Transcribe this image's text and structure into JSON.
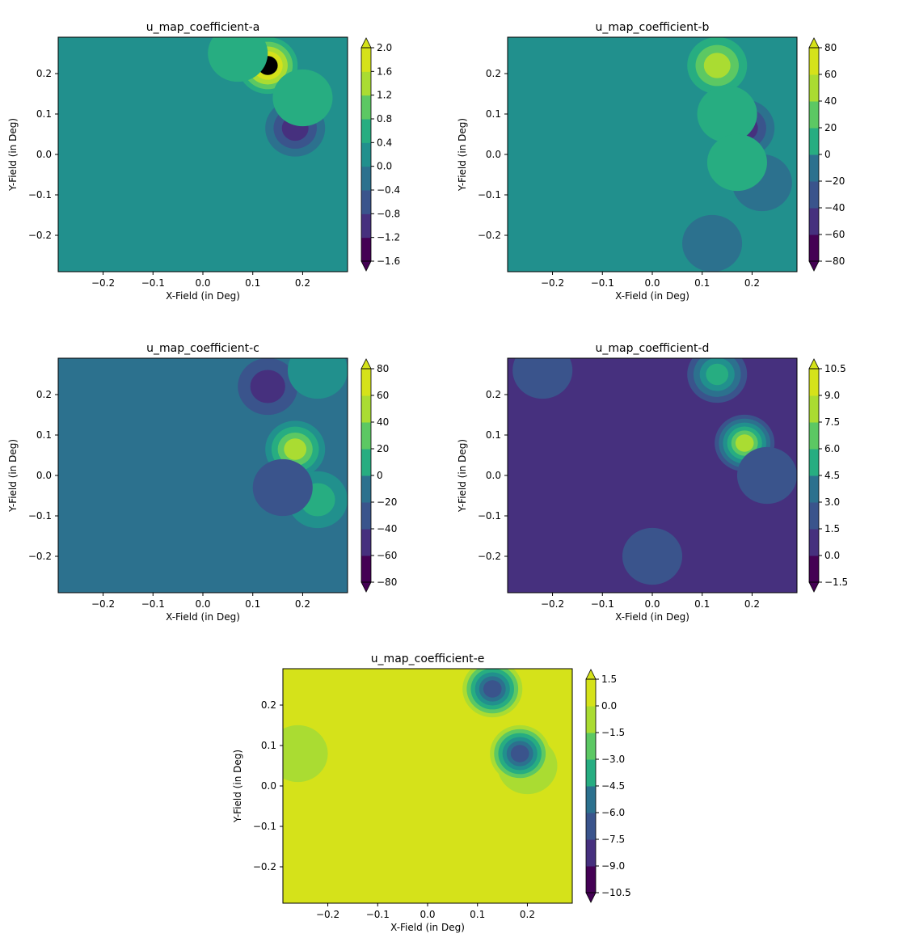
{
  "chart_data": [
    {
      "type": "heatmap",
      "title": "u_map_coefficient-a",
      "xlabel": "X-Field (in Deg)",
      "ylabel": "Y-Field (in Deg)",
      "xlim": [
        -0.29,
        0.29
      ],
      "ylim": [
        -0.29,
        0.29
      ],
      "xticks": [
        -0.2,
        -0.1,
        0.0,
        0.1,
        0.2
      ],
      "xtick_labels": [
        "−0.2",
        "−0.1",
        "0.0",
        "0.1",
        "0.2"
      ],
      "yticks": [
        -0.2,
        -0.1,
        0.0,
        0.1,
        0.2
      ],
      "ytick_labels": [
        "−0.2",
        "−0.1",
        "0.0",
        "0.1",
        "0.2"
      ],
      "colorbar_ticks": [
        "−1.6",
        "−1.2",
        "−0.8",
        "−0.4",
        "0.0",
        "0.4",
        "0.8",
        "1.2",
        "1.6",
        "2.0"
      ],
      "colorbar_extend": "both",
      "base_level": 4,
      "blobs": [
        {
          "x": 0.13,
          "y": 0.22,
          "levels": [
            5,
            6,
            7,
            8,
            9
          ]
        },
        {
          "x": 0.185,
          "y": 0.065,
          "levels": [
            3,
            2,
            1
          ]
        },
        {
          "x": 0.07,
          "y": 0.25,
          "levels": [
            5
          ]
        },
        {
          "x": 0.2,
          "y": 0.14,
          "levels": [
            5
          ]
        }
      ]
    },
    {
      "type": "heatmap",
      "title": "u_map_coefficient-b",
      "xlabel": "X-Field (in Deg)",
      "ylabel": "Y-Field (in Deg)",
      "xlim": [
        -0.29,
        0.29
      ],
      "ylim": [
        -0.29,
        0.29
      ],
      "xticks": [
        -0.2,
        -0.1,
        0.0,
        0.1,
        0.2
      ],
      "xtick_labels": [
        "−0.2",
        "−0.1",
        "0.0",
        "0.1",
        "0.2"
      ],
      "yticks": [
        -0.2,
        -0.1,
        0.0,
        0.1,
        0.2
      ],
      "ytick_labels": [
        "−0.2",
        "−0.1",
        "0.0",
        "0.1",
        "0.2"
      ],
      "colorbar_ticks": [
        "−80",
        "−60",
        "−40",
        "−20",
        "0",
        "20",
        "40",
        "60",
        "80"
      ],
      "colorbar_extend": "both",
      "base_level": 4,
      "blobs": [
        {
          "x": 0.13,
          "y": 0.22,
          "levels": [
            5,
            6,
            7
          ]
        },
        {
          "x": 0.185,
          "y": 0.065,
          "levels": [
            3,
            2,
            1
          ]
        },
        {
          "x": 0.22,
          "y": -0.07,
          "levels": [
            3
          ]
        },
        {
          "x": 0.12,
          "y": -0.22,
          "levels": [
            3
          ]
        },
        {
          "x": 0.15,
          "y": 0.1,
          "levels": [
            5
          ]
        },
        {
          "x": 0.17,
          "y": -0.02,
          "levels": [
            5
          ]
        }
      ]
    },
    {
      "type": "heatmap",
      "title": "u_map_coefficient-c",
      "xlabel": "X-Field (in Deg)",
      "ylabel": "Y-Field (in Deg)",
      "xlim": [
        -0.29,
        0.29
      ],
      "ylim": [
        -0.29,
        0.29
      ],
      "xticks": [
        -0.2,
        -0.1,
        0.0,
        0.1,
        0.2
      ],
      "xtick_labels": [
        "−0.2",
        "−0.1",
        "0.0",
        "0.1",
        "0.2"
      ],
      "yticks": [
        -0.2,
        -0.1,
        0.0,
        0.1,
        0.2
      ],
      "ytick_labels": [
        "−0.2",
        "−0.1",
        "0.0",
        "0.1",
        "0.2"
      ],
      "colorbar_ticks": [
        "−80",
        "−60",
        "−40",
        "−20",
        "0",
        "20",
        "40",
        "60",
        "80"
      ],
      "colorbar_extend": "both",
      "base_level": 3,
      "blobs": [
        {
          "x": 0.185,
          "y": 0.065,
          "levels": [
            4,
            5,
            6,
            7
          ]
        },
        {
          "x": 0.13,
          "y": 0.22,
          "levels": [
            2,
            1
          ]
        },
        {
          "x": 0.23,
          "y": -0.06,
          "levels": [
            4,
            5
          ]
        },
        {
          "x": 0.16,
          "y": -0.03,
          "levels": [
            2
          ]
        },
        {
          "x": 0.23,
          "y": 0.26,
          "levels": [
            4
          ]
        }
      ]
    },
    {
      "type": "heatmap",
      "title": "u_map_coefficient-d",
      "xlabel": "X-Field (in Deg)",
      "ylabel": "Y-Field (in Deg)",
      "xlim": [
        -0.29,
        0.29
      ],
      "ylim": [
        -0.29,
        0.29
      ],
      "xticks": [
        -0.2,
        -0.1,
        0.0,
        0.1,
        0.2
      ],
      "xtick_labels": [
        "−0.2",
        "−0.1",
        "0.0",
        "0.1",
        "0.2"
      ],
      "yticks": [
        -0.2,
        -0.1,
        0.0,
        0.1,
        0.2
      ],
      "ytick_labels": [
        "−0.2",
        "−0.1",
        "0.0",
        "0.1",
        "0.2"
      ],
      "colorbar_ticks": [
        "−1.5",
        "0.0",
        "1.5",
        "3.0",
        "4.5",
        "6.0",
        "7.5",
        "9.0",
        "10.5"
      ],
      "colorbar_extend": "both",
      "base_level": 1,
      "blobs": [
        {
          "x": 0.13,
          "y": 0.25,
          "levels": [
            2,
            3,
            4,
            5
          ]
        },
        {
          "x": 0.185,
          "y": 0.08,
          "levels": [
            2,
            3,
            4,
            5,
            6,
            7
          ]
        },
        {
          "x": 0.0,
          "y": -0.2,
          "levels": [
            2
          ]
        },
        {
          "x": 0.23,
          "y": 0.0,
          "levels": [
            2
          ]
        },
        {
          "x": -0.22,
          "y": 0.26,
          "levels": [
            2
          ]
        }
      ]
    },
    {
      "type": "heatmap",
      "title": "u_map_coefficient-e",
      "xlabel": "X-Field (in Deg)",
      "ylabel": "Y-Field (in Deg)",
      "xlim": [
        -0.29,
        0.29
      ],
      "ylim": [
        -0.29,
        0.29
      ],
      "xticks": [
        -0.2,
        -0.1,
        0.0,
        0.1,
        0.2
      ],
      "xtick_labels": [
        "−0.2",
        "−0.1",
        "0.0",
        "0.1",
        "0.2"
      ],
      "yticks": [
        -0.2,
        -0.1,
        0.0,
        0.1,
        0.2
      ],
      "ytick_labels": [
        "−0.2",
        "−0.1",
        "0.0",
        "0.1",
        "0.2"
      ],
      "colorbar_ticks": [
        "−10.5",
        "−9.0",
        "−7.5",
        "−6.0",
        "−4.5",
        "−3.0",
        "−1.5",
        "0.0",
        "1.5"
      ],
      "colorbar_extend": "both",
      "base_level": 8,
      "blobs": [
        {
          "x": -0.26,
          "y": 0.08,
          "levels": [
            7
          ]
        },
        {
          "x": 0.2,
          "y": 0.05,
          "levels": [
            7
          ]
        },
        {
          "x": 0.13,
          "y": 0.24,
          "levels": [
            7,
            6,
            5,
            4,
            3,
            2
          ]
        },
        {
          "x": 0.185,
          "y": 0.08,
          "levels": [
            7,
            6,
            5,
            4,
            3,
            2
          ]
        }
      ]
    }
  ]
}
